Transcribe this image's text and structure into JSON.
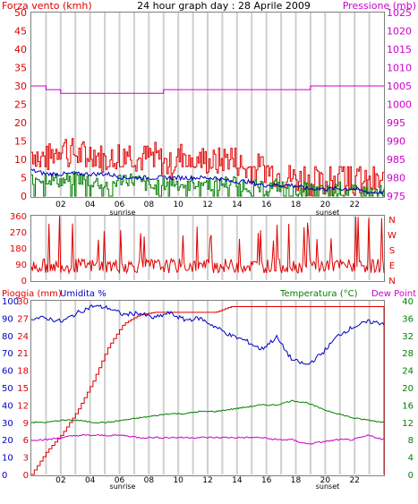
{
  "colors": {
    "wind": "#e00000",
    "gust_green": "#008000",
    "wind_avg_blue": "#0000c0",
    "pressure": "#cc00cc",
    "rain": "#e00000",
    "humidity": "#0000c0",
    "temperature": "#008000",
    "dewpoint": "#cc00cc",
    "grid": "#cfcfcf"
  },
  "hour_ticks": [
    "02",
    "04",
    "06",
    "08",
    "10",
    "12",
    "14",
    "16",
    "18",
    "20",
    "22"
  ],
  "sunrise_label": "sunrise",
  "sunset_label": "sunset",
  "chart_data": [
    {
      "type": "line",
      "title": "24 hour graph day : 28 Aprile 2009",
      "left_label": "Forza vento (kmh)",
      "right_label": "Pressione (mb)",
      "left_ticks": [
        "0",
        "5",
        "10",
        "15",
        "20",
        "25",
        "30",
        "35",
        "40",
        "45",
        "50"
      ],
      "right_ticks": [
        "975",
        "980",
        "985",
        "990",
        "995",
        "1000",
        "1005",
        "1010",
        "1015",
        "1020",
        "1025"
      ],
      "ylim": [
        0,
        50
      ],
      "ylim_right": [
        975,
        1025
      ],
      "series": [
        {
          "values_kmh_sampled": [
            12,
            10,
            14,
            11,
            12,
            9,
            13,
            10,
            11,
            8,
            12,
            10,
            9,
            11,
            7,
            8,
            6,
            5,
            4,
            3,
            5,
            4,
            3,
            4
          ]
        },
        {
          "values_kmh_sampled": [
            5,
            5,
            4,
            5,
            4,
            3,
            5,
            4,
            2,
            4,
            3,
            4,
            3,
            4,
            3,
            2,
            3,
            1,
            2,
            1,
            2,
            1,
            1,
            1
          ]
        },
        {
          "values_kmh_sampled": [
            7,
            6,
            6,
            6,
            6,
            6,
            5,
            5,
            5,
            5,
            5,
            5,
            5,
            4,
            4,
            3,
            3,
            3,
            2,
            2,
            2,
            2,
            1,
            1
          ]
        },
        {
          "values_mb_sampled": [
            1005,
            1004,
            1003,
            1003,
            1003,
            1003,
            1003,
            1003,
            1003,
            1004,
            1004,
            1004,
            1004,
            1004,
            1004,
            1004,
            1004,
            1004,
            1004,
            1005,
            1005,
            1005,
            1005,
            1005
          ]
        }
      ]
    },
    {
      "type": "line",
      "right_label_letters": [
        "N",
        "W",
        "S",
        "E",
        "N"
      ],
      "left_ticks": [
        "0",
        "90",
        "180",
        "270",
        "360"
      ],
      "ylim": [
        0,
        360
      ],
      "series": [
        {
          "values_deg_sampled": [
            45,
            60,
            80,
            300,
            50,
            70,
            290,
            60,
            100,
            40,
            90,
            300,
            70,
            50,
            320,
            80,
            60,
            310,
            90,
            70,
            100,
            300,
            60,
            120
          ]
        }
      ]
    },
    {
      "type": "line",
      "left_label": "Pioggia (mm)",
      "left_label2": "Umidita %",
      "right_label": "Temperatura (°C)",
      "right_label2": "Dew Point",
      "rain_ticks": [
        "0",
        "3",
        "6",
        "9",
        "12",
        "15",
        "18",
        "21",
        "24",
        "27",
        "30"
      ],
      "humidity_ticks": [
        "0",
        "10",
        "20",
        "30",
        "40",
        "50",
        "60",
        "70",
        "80",
        "90",
        "100"
      ],
      "temp_ticks": [
        "0",
        "4",
        "8",
        "12",
        "16",
        "20",
        "24",
        "28",
        "32",
        "36",
        "40"
      ],
      "ylim_rain": [
        0,
        30
      ],
      "ylim_humidity": [
        0,
        100
      ],
      "ylim_temp": [
        0,
        40
      ],
      "series": [
        {
          "values_mm_sampled": [
            0,
            4,
            7,
            11,
            16,
            22,
            26,
            27.5,
            28,
            28,
            28,
            28,
            28,
            29,
            29,
            29,
            29,
            29,
            29,
            29,
            29,
            29,
            29,
            29
          ]
        },
        {
          "values_pct_sampled": [
            90,
            90,
            88,
            93,
            97,
            96,
            92,
            93,
            90,
            93,
            89,
            90,
            85,
            80,
            77,
            72,
            79,
            66,
            63,
            70,
            80,
            85,
            88,
            87
          ]
        },
        {
          "values_c_sampled": [
            12,
            12,
            12.5,
            12.5,
            12,
            12,
            12.5,
            13,
            13.5,
            14,
            14,
            14.5,
            14.5,
            15,
            15.5,
            16,
            16,
            17,
            16.5,
            15,
            14,
            13,
            12.5,
            12
          ]
        },
        {
          "values_c_sampled": [
            8,
            8,
            8.5,
            9,
            9,
            9,
            9,
            8.5,
            8.5,
            8.5,
            8.5,
            8.5,
            8.5,
            8.5,
            8.5,
            8.5,
            8,
            8,
            7,
            7.5,
            8,
            8,
            9,
            8
          ]
        }
      ]
    }
  ]
}
